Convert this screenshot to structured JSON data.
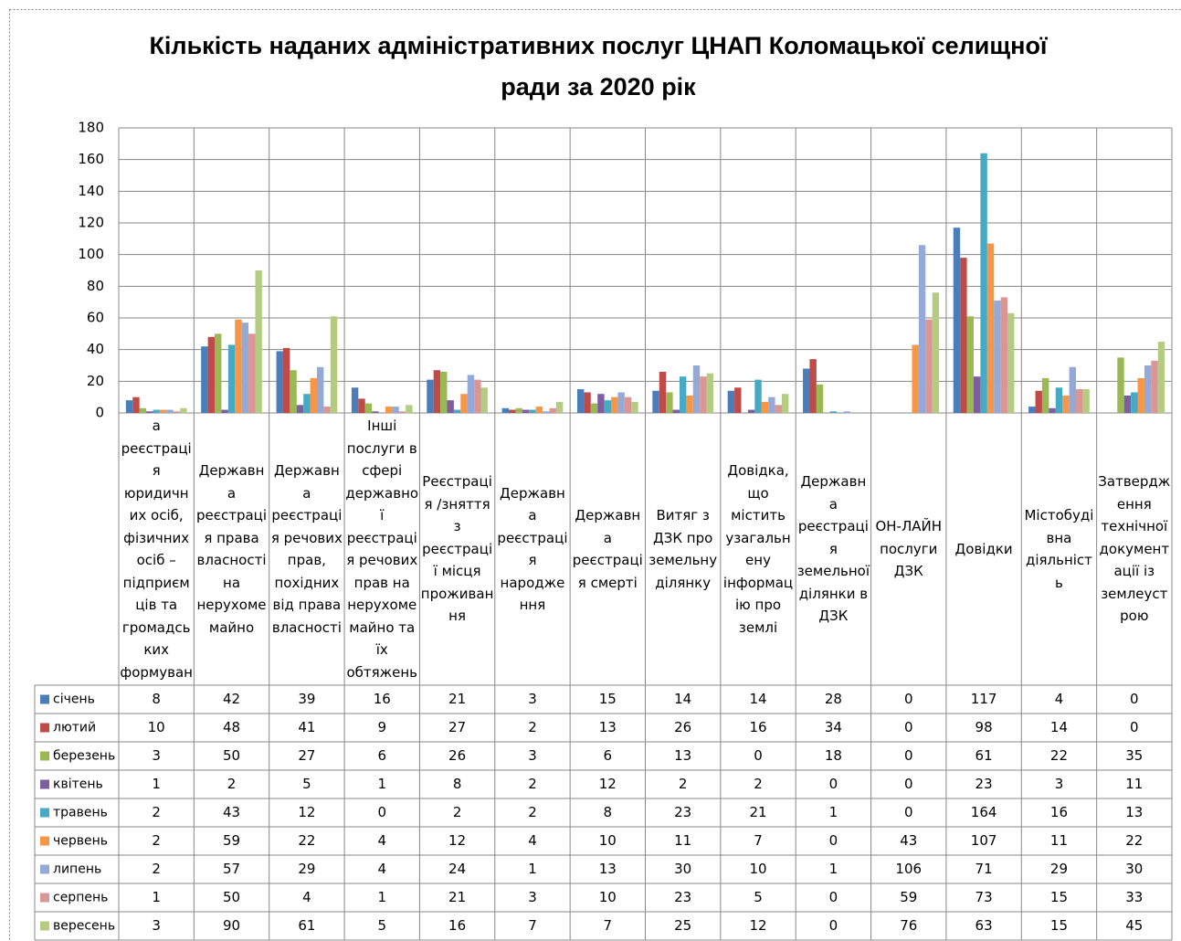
{
  "chart_data": {
    "type": "bar",
    "title": "Кількість наданих адміністративних послуг ЦНАП Коломацької селищної ради за 2020 рік",
    "categories": [
      "Державна реєстрація юридичних осіб, фізичних осіб – підприємців та громадських формувань",
      "Державна реєстрація права власності на нерухоме майно",
      "Державна реєстрація речових прав, похідних від права власності",
      "Інші послуги в сфері державної реєстрація речових прав на нерухоме майно та їх обтяжень",
      "Реєстрація /зняття з реєстрації місця проживання",
      "Державна реєстрація народження",
      "Державна реєстрація смерті",
      "Витяг з ДЗК про земельну ділянку",
      "Довідка, що містить узагальнену інформацію про землі",
      "Державна реєстрація земельної ділянки в ДЗК",
      "ОН-ЛАЙН послуги ДЗК",
      "Довідки",
      "Містобудівна діяльність",
      "Затвердження технічної документації із землеустрою"
    ],
    "series": [
      {
        "name": "січень",
        "color": "#4a7ebb",
        "values": [
          8,
          42,
          39,
          16,
          21,
          3,
          15,
          14,
          14,
          28,
          0,
          117,
          4,
          0
        ]
      },
      {
        "name": "лютий",
        "color": "#be4b48",
        "values": [
          10,
          48,
          41,
          9,
          27,
          2,
          13,
          26,
          16,
          34,
          0,
          98,
          14,
          0
        ]
      },
      {
        "name": "березень",
        "color": "#98b954",
        "values": [
          3,
          50,
          27,
          6,
          26,
          3,
          6,
          13,
          0,
          18,
          0,
          61,
          22,
          35
        ]
      },
      {
        "name": "квітень",
        "color": "#7d5fa0",
        "values": [
          1,
          2,
          5,
          1,
          8,
          2,
          12,
          2,
          2,
          0,
          0,
          23,
          3,
          11
        ]
      },
      {
        "name": "травень",
        "color": "#46aac5",
        "values": [
          2,
          43,
          12,
          0,
          2,
          2,
          8,
          23,
          21,
          1,
          0,
          164,
          16,
          13
        ]
      },
      {
        "name": "червень",
        "color": "#f79646",
        "values": [
          2,
          59,
          22,
          4,
          12,
          4,
          10,
          11,
          7,
          0,
          43,
          107,
          11,
          22
        ]
      },
      {
        "name": "липень",
        "color": "#93a9d7",
        "values": [
          2,
          57,
          29,
          4,
          24,
          1,
          13,
          30,
          10,
          1,
          106,
          71,
          29,
          30
        ]
      },
      {
        "name": "серпень",
        "color": "#d99694",
        "values": [
          1,
          50,
          4,
          1,
          21,
          3,
          10,
          23,
          5,
          0,
          59,
          73,
          15,
          33
        ]
      },
      {
        "name": "вересень",
        "color": "#b3cc82",
        "values": [
          3,
          90,
          61,
          5,
          16,
          7,
          7,
          25,
          12,
          0,
          76,
          63,
          15,
          45
        ]
      }
    ],
    "ylim": [
      0,
      180
    ],
    "yticks": [
      0,
      20,
      40,
      60,
      80,
      100,
      120,
      140,
      160,
      180
    ],
    "grid": true
  }
}
